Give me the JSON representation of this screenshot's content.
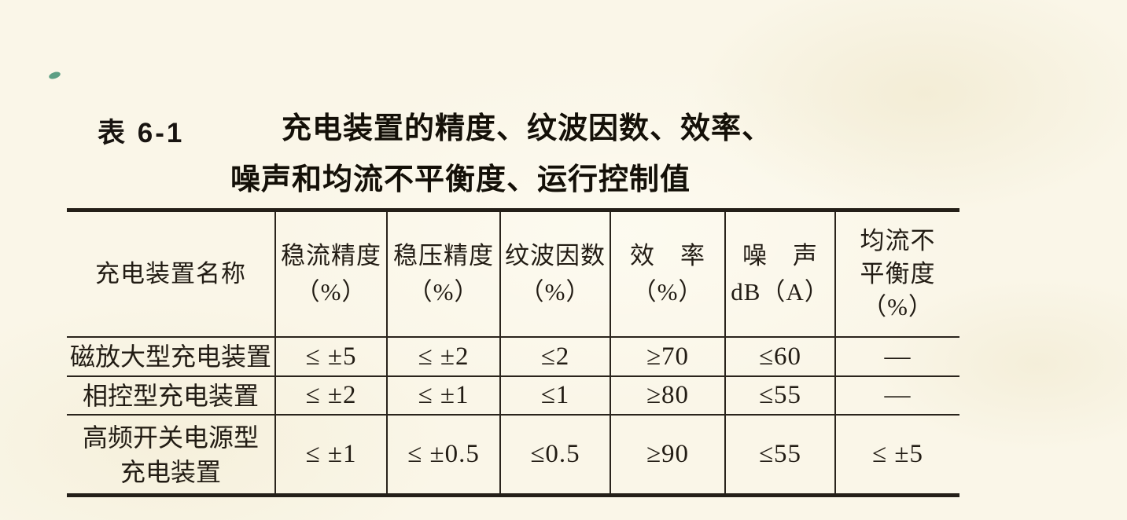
{
  "page": {
    "paper_color": "#faf6e8",
    "ink_color": "#211c15",
    "rule_color": "#2a241c"
  },
  "table": {
    "label": "表 6-1",
    "title_line1": "充电装置的精度、纹波因数、效率、",
    "title_line2": "噪声和均流不平衡度、运行控制值",
    "columns": [
      {
        "lines": [
          "充电装置名称"
        ]
      },
      {
        "lines": [
          "稳流精度",
          "（%）"
        ]
      },
      {
        "lines": [
          "稳压精度",
          "（%）"
        ]
      },
      {
        "lines": [
          "纹波因数",
          "（%）"
        ]
      },
      {
        "lines": [
          "效　率",
          "（%）"
        ]
      },
      {
        "lines": [
          "噪　声",
          "dB（A）"
        ]
      },
      {
        "lines": [
          "均流不",
          "平衡度",
          "（%）"
        ]
      }
    ],
    "rows": [
      {
        "name_lines": [
          "磁放大型充电装置"
        ],
        "values": [
          "≤ ±5",
          "≤ ±2",
          "≤2",
          "≥70",
          "≤60",
          "—"
        ]
      },
      {
        "name_lines": [
          "相控型充电装置"
        ],
        "values": [
          "≤ ±2",
          "≤ ±1",
          "≤1",
          "≥80",
          "≤55",
          "—"
        ]
      },
      {
        "name_lines": [
          "高频开关电源型",
          "充电装置"
        ],
        "values": [
          "≤ ±1",
          "≤ ±0.5",
          "≤0.5",
          "≥90",
          "≤55",
          "≤ ±5"
        ]
      }
    ]
  }
}
